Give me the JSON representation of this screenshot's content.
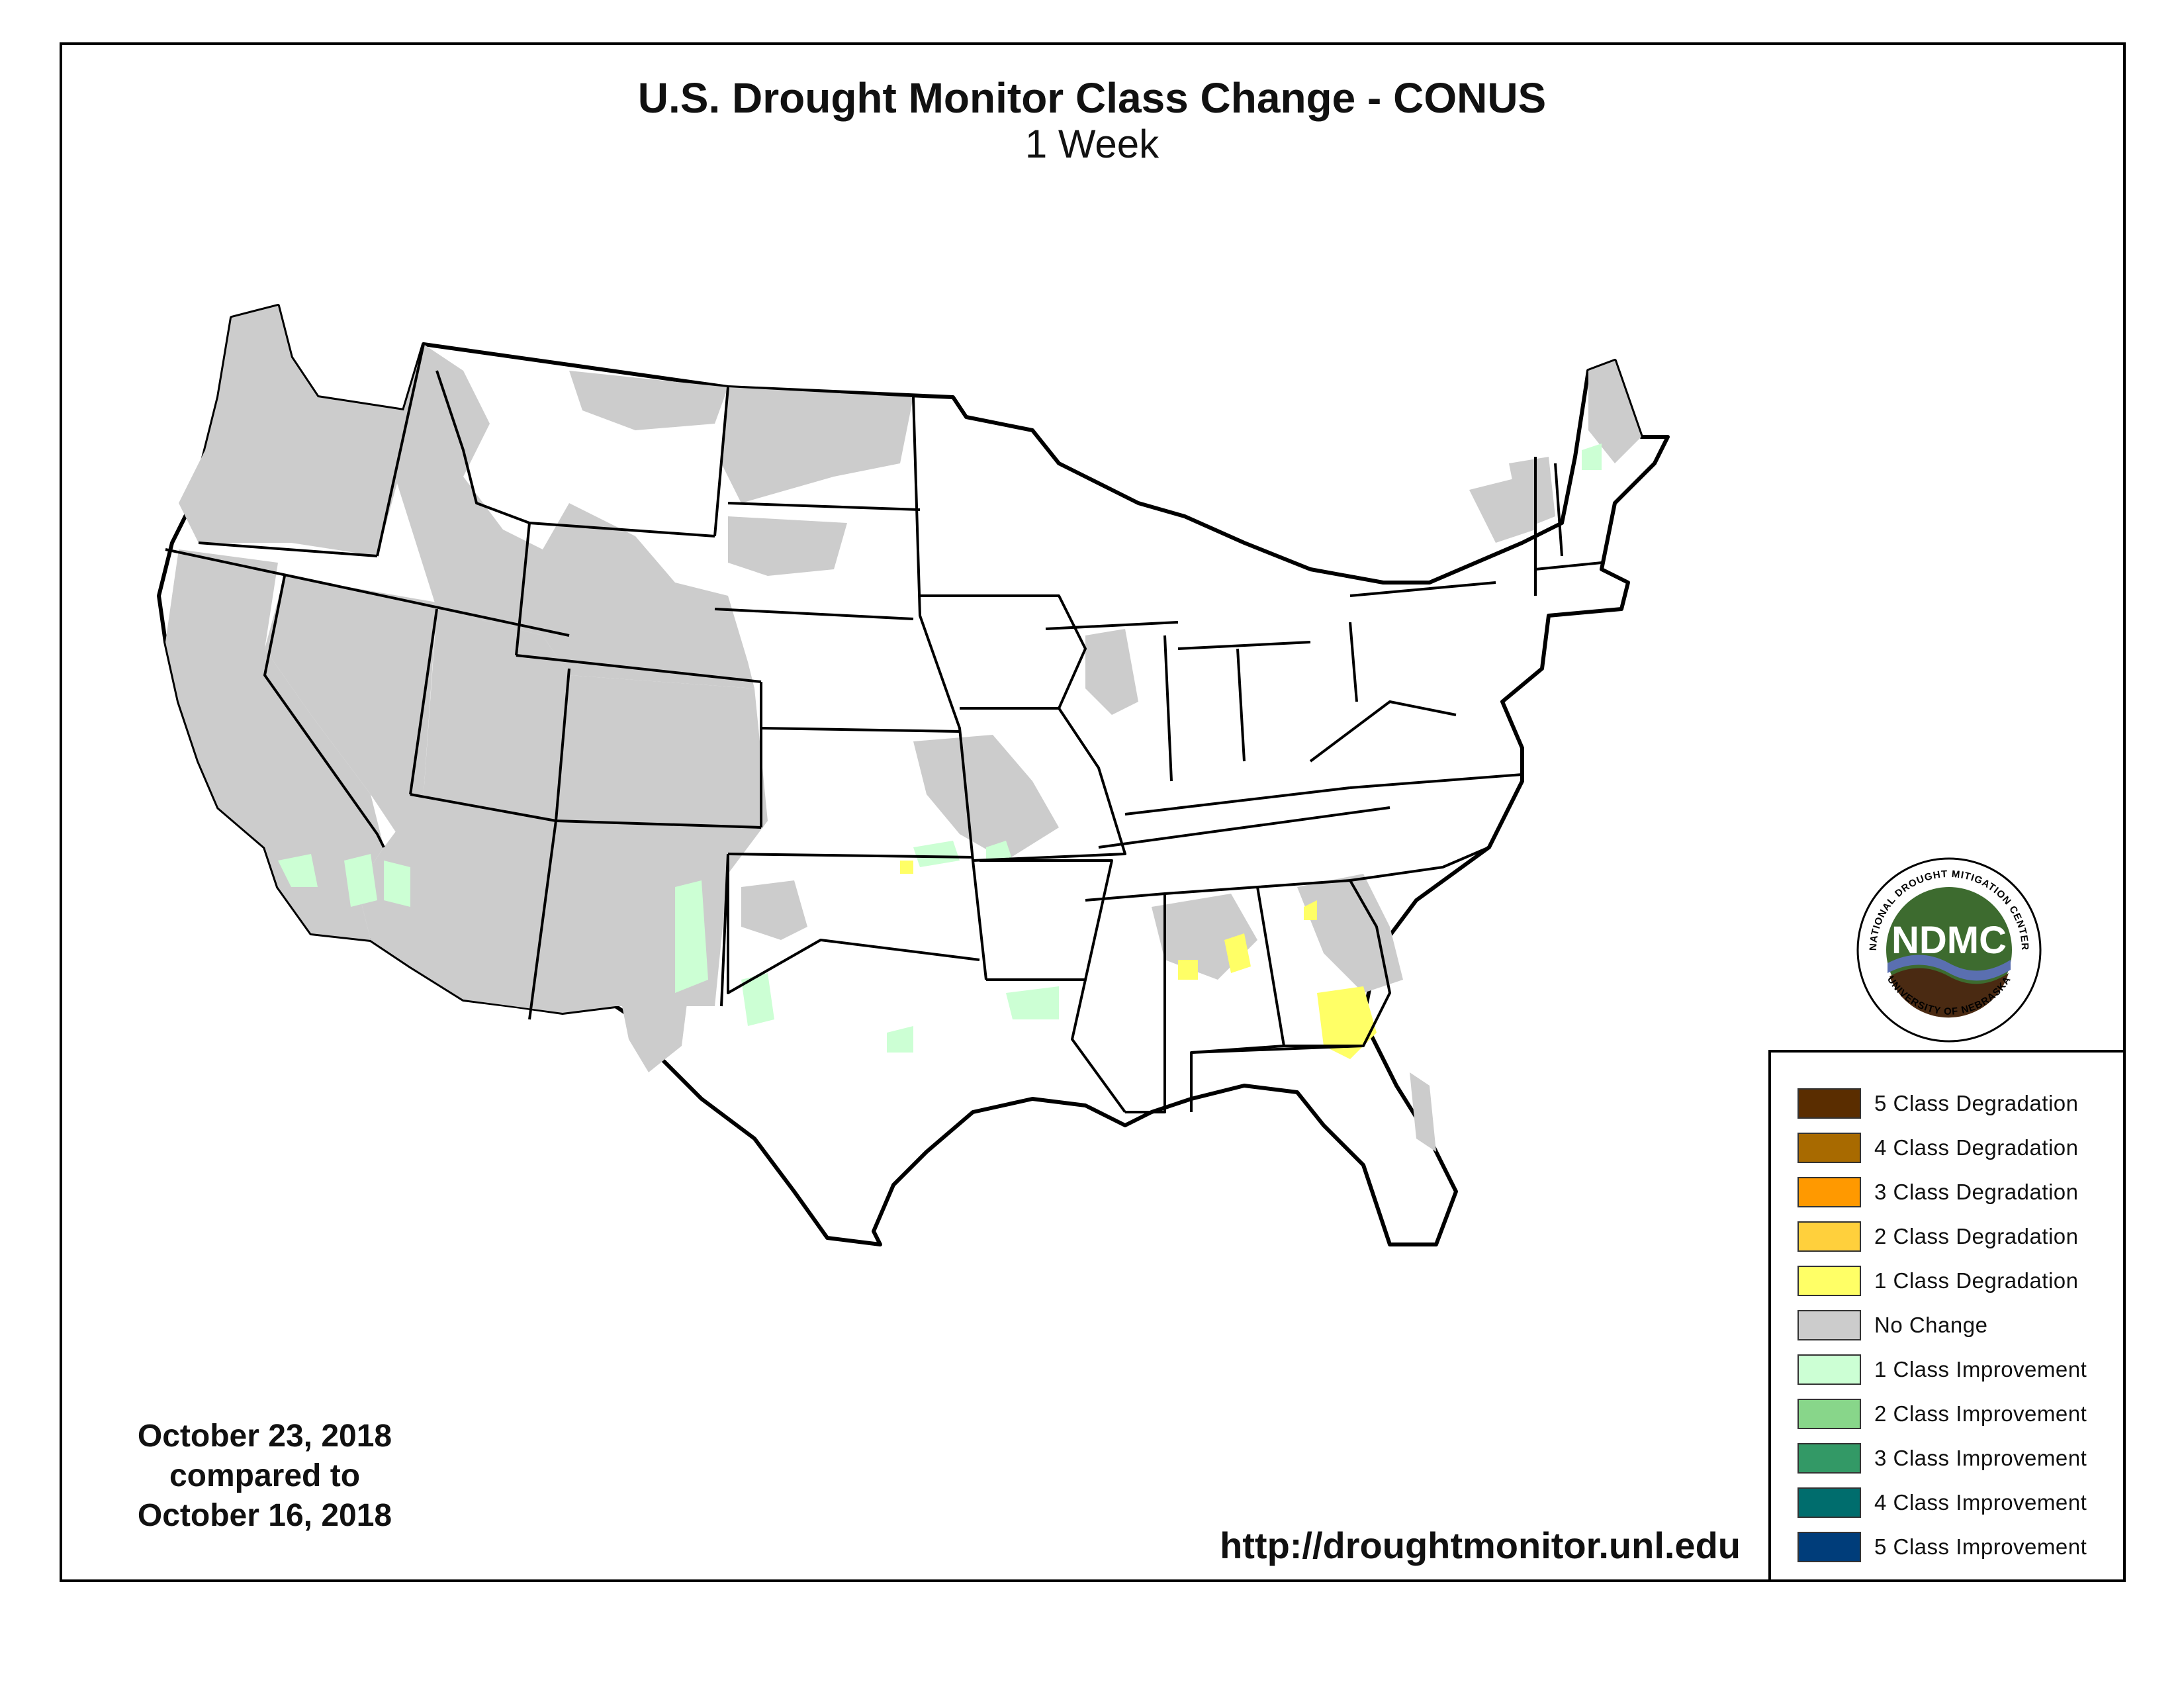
{
  "title": "U.S. Drought Monitor Class Change - CONUS",
  "subtitle": "1 Week",
  "date_block": {
    "line1": "October 23, 2018",
    "line2": "compared to",
    "line3": "October 16, 2018"
  },
  "url": "http://droughtmonitor.unl.edu",
  "logo": {
    "abbreviation": "NDMC",
    "ring_top": "NATIONAL DROUGHT MITIGATION CENTER",
    "ring_bottom": "UNIVERSITY OF NEBRASKA"
  },
  "legend": [
    {
      "label": "5 Class Degradation",
      "color": "#5a2d00"
    },
    {
      "label": "4 Class Degradation",
      "color": "#a86a00"
    },
    {
      "label": "3 Class Degradation",
      "color": "#ff9900"
    },
    {
      "label": "2 Class Degradation",
      "color": "#ffd03c"
    },
    {
      "label": "1 Class Degradation",
      "color": "#ffff66"
    },
    {
      "label": "No Change",
      "color": "#cccccc"
    },
    {
      "label": "1 Class Improvement",
      "color": "#ccffd4"
    },
    {
      "label": "2 Class Improvement",
      "color": "#88d68a"
    },
    {
      "label": "3 Class Improvement",
      "color": "#339966"
    },
    {
      "label": "4 Class Improvement",
      "color": "#006d6d"
    },
    {
      "label": "5 Class Improvement",
      "color": "#003d7a"
    }
  ],
  "map_colors": {
    "no_change": "#cccccc",
    "improvement_1": "#ccffd4",
    "degradation_1": "#ffff66",
    "boundary": "#000000"
  }
}
